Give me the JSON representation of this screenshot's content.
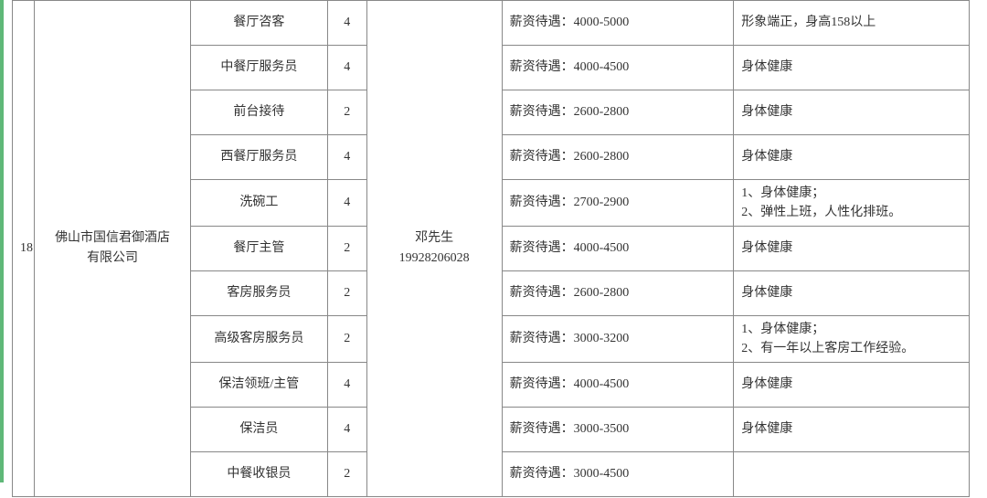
{
  "index": "18",
  "company": "佛山市国信君御酒店\n有限公司",
  "contact": "邓先生\n19928206028",
  "salary_prefix": "薪资待遇：",
  "rows": [
    {
      "job": "餐厅咨客",
      "num": "4",
      "salary": "4000-5000",
      "req": "形象端正，身高158以上"
    },
    {
      "job": "中餐厅服务员",
      "num": "4",
      "salary": "4000-4500",
      "req": "身体健康"
    },
    {
      "job": "前台接待",
      "num": "2",
      "salary": "2600-2800",
      "req": "身体健康"
    },
    {
      "job": "西餐厅服务员",
      "num": "4",
      "salary": "2600-2800",
      "req": "身体健康"
    },
    {
      "job": "洗碗工",
      "num": "4",
      "salary": "2700-2900",
      "req": "1、身体健康；\n2、弹性上班，人性化排班。"
    },
    {
      "job": "餐厅主管",
      "num": "2",
      "salary": "4000-4500",
      "req": "身体健康"
    },
    {
      "job": "客房服务员",
      "num": "2",
      "salary": "2600-2800",
      "req": "身体健康"
    },
    {
      "job": "高级客房服务员",
      "num": "2",
      "salary": "3000-3200",
      "req": "1、身体健康；\n2、有一年以上客房工作经验。"
    },
    {
      "job": "保洁领班/主管",
      "num": "4",
      "salary": "4000-4500",
      "req": "身体健康"
    },
    {
      "job": "保洁员",
      "num": "4",
      "salary": "3000-3500",
      "req": "身体健康"
    },
    {
      "job": "中餐收银员",
      "num": "2",
      "salary": "3000-4500",
      "req": ""
    }
  ]
}
